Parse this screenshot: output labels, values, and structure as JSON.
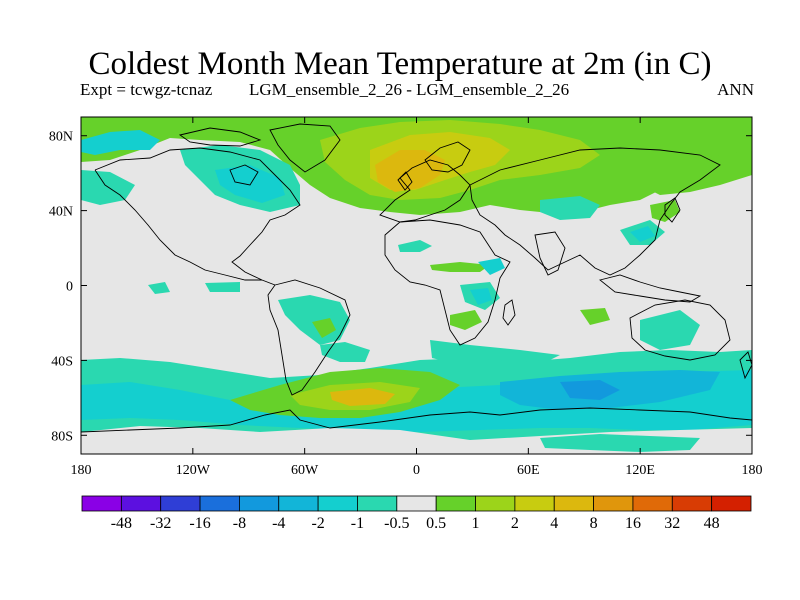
{
  "header": {
    "title": "Coldest Month Mean Temperature at 2m (in C)",
    "expt": "Expt = tcwgz-tcnaz",
    "comparison": "LGM_ensemble_2_26 - LGM_ensemble_2_26",
    "period": "ANN"
  },
  "axes": {
    "lon_ticks": [
      "180",
      "120W",
      "60W",
      "0",
      "60E",
      "120E",
      "180"
    ],
    "lat_ticks": [
      "80N",
      "40N",
      "0",
      "40S",
      "80S"
    ]
  },
  "colorbar": {
    "labels": [
      "-48",
      "-32",
      "-16",
      "-8",
      "-4",
      "-2",
      "-1",
      "-0.5",
      "0.5",
      "1",
      "2",
      "4",
      "8",
      "16",
      "32",
      "48"
    ],
    "colors": [
      "#8a00e6",
      "#5c10e0",
      "#2f3ed6",
      "#1a6fdc",
      "#1299dd",
      "#12b5d8",
      "#14cfcf",
      "#2ad8b0",
      "#e6e6e6",
      "#66d12a",
      "#9cd41a",
      "#c8cc10",
      "#dcb80e",
      "#e0960c",
      "#e06a08",
      "#d83c04",
      "#d42000"
    ]
  },
  "field_colors": {
    "background": "#e6e6e6",
    "neg_small": "#2ad8b0",
    "neg_mid": "#14cfcf",
    "neg_large": "#12b5d8",
    "neg_xl": "#1299dd",
    "pos_small": "#66d12a",
    "pos_mid": "#9cd41a",
    "pos_large": "#c8cc10",
    "pos_xl": "#dcb80e",
    "pos_xxl": "#e0960c"
  }
}
